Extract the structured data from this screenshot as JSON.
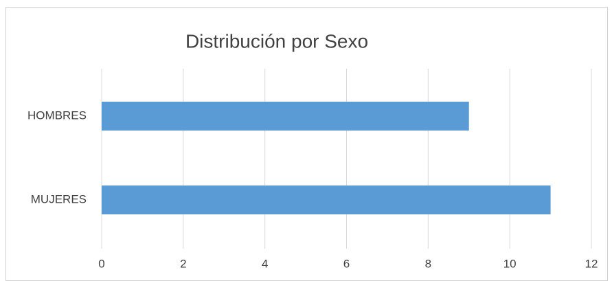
{
  "chart_data": {
    "type": "hbar",
    "title": "Distribución por Sexo",
    "categories": [
      "HOMBRES",
      "MUJERES"
    ],
    "values": [
      9,
      11
    ],
    "color": "#5b9bd5",
    "xlim": [
      0,
      12
    ],
    "xticks": [
      0,
      2,
      4,
      6,
      8,
      10,
      12
    ],
    "grid": true
  }
}
